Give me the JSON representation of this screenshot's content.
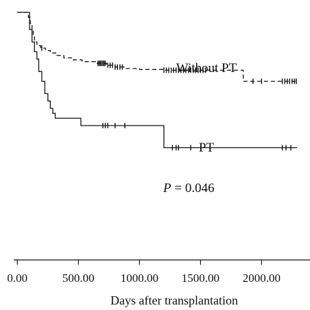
{
  "chart_data": {
    "type": "line",
    "title": "",
    "xlabel": "Days after transplantation",
    "ylabel": "",
    "xlim": [
      -30,
      2290
    ],
    "ylim": [
      0,
      1
    ],
    "x_ticks": [
      0,
      500,
      1000,
      1500,
      2000
    ],
    "x_tick_labels": [
      "0.00",
      "500.00",
      "1000.00",
      "1500.00",
      "2000.00"
    ],
    "grid": false,
    "annotation": {
      "prefix": "P",
      "text": " = 0.046"
    },
    "series": [
      {
        "name": "Without PT",
        "style": "dashed",
        "steps": [
          [
            0,
            1.0
          ],
          [
            90,
            0.98
          ],
          [
            105,
            0.955
          ],
          [
            120,
            0.93
          ],
          [
            130,
            0.9
          ],
          [
            140,
            0.88
          ],
          [
            160,
            0.865
          ],
          [
            190,
            0.855
          ],
          [
            230,
            0.845
          ],
          [
            270,
            0.835
          ],
          [
            320,
            0.825
          ],
          [
            380,
            0.815
          ],
          [
            450,
            0.807
          ],
          [
            530,
            0.8
          ],
          [
            640,
            0.793
          ],
          [
            730,
            0.785
          ],
          [
            800,
            0.778
          ],
          [
            880,
            0.772
          ],
          [
            1000,
            0.768
          ],
          [
            1200,
            0.765
          ],
          [
            1850,
            0.72
          ],
          [
            2290,
            0.72
          ]
        ],
        "censored": [
          200,
          660,
          670,
          680,
          690,
          700,
          710,
          720,
          740,
          760,
          780,
          800,
          820,
          840,
          860,
          1200,
          1220,
          1240,
          1260,
          1280,
          1300,
          1320,
          1340,
          1360,
          1380,
          1400,
          1420,
          1440,
          1460,
          1480,
          1500,
          1520,
          1540,
          1930,
          2000,
          2170,
          2190,
          2210,
          2230,
          2250,
          2270,
          2285
        ]
      },
      {
        "name": "PT",
        "style": "solid",
        "steps": [
          [
            0,
            1.0
          ],
          [
            100,
            0.93
          ],
          [
            120,
            0.88
          ],
          [
            140,
            0.84
          ],
          [
            160,
            0.81
          ],
          [
            175,
            0.76
          ],
          [
            200,
            0.72
          ],
          [
            225,
            0.67
          ],
          [
            250,
            0.64
          ],
          [
            270,
            0.61
          ],
          [
            290,
            0.59
          ],
          [
            310,
            0.57
          ],
          [
            520,
            0.54
          ],
          [
            1200,
            0.45
          ],
          [
            2290,
            0.45
          ]
        ],
        "censored": [
          700,
          720,
          740,
          800,
          880,
          1270,
          1300,
          1320,
          1420,
          2170,
          2200,
          2240
        ]
      }
    ]
  }
}
